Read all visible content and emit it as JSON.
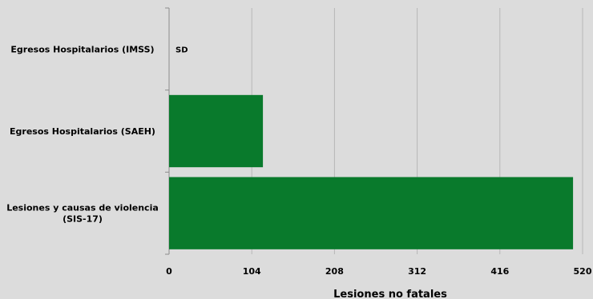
{
  "chart_data": {
    "type": "bar",
    "orientation": "horizontal",
    "categories": [
      [
        "Egresos Hospitalarios (IMSS)"
      ],
      [
        "Egresos Hospitalarios (SAEH)"
      ],
      [
        "Lesiones y causas de violencia",
        "(SIS-17)"
      ]
    ],
    "values": [
      null,
      118,
      508
    ],
    "value_labels": [
      "SD",
      "",
      ""
    ],
    "xlabel": "Lesiones no fatales",
    "xlim": [
      0,
      520
    ],
    "xticks": [
      0,
      104,
      208,
      312,
      416,
      520
    ],
    "grid": true,
    "colors": {
      "bar": "#097a2c",
      "grid": "#b7b7b7",
      "axis": "#8c8c8c",
      "background": "#dcdcdc"
    }
  }
}
